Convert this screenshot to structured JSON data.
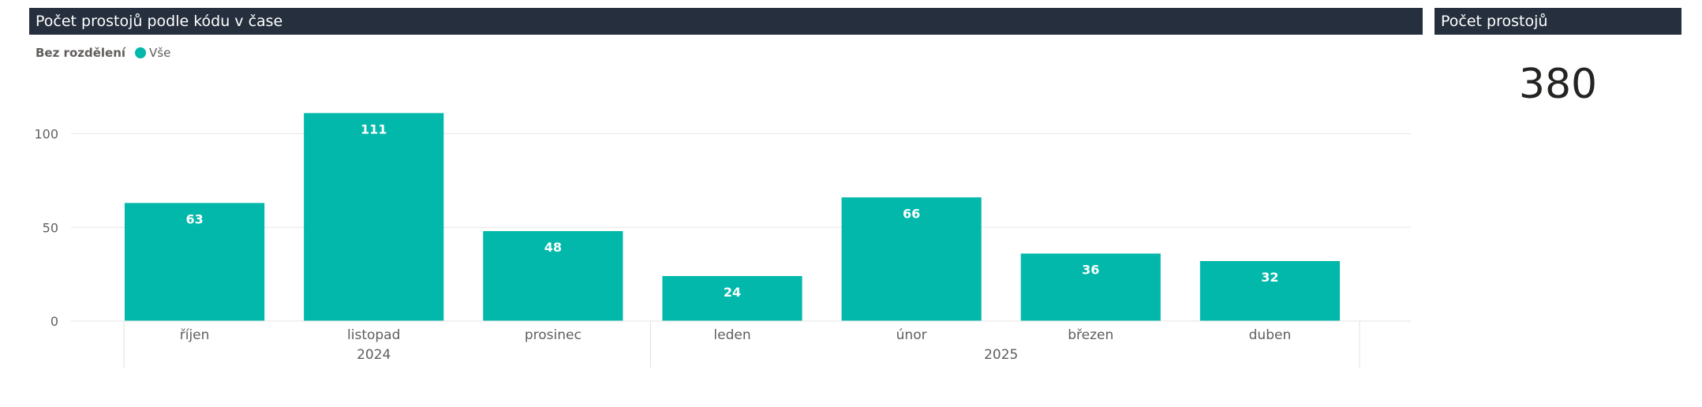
{
  "chart_panel": {
    "title": "Počet prostojů podle kódu v čase"
  },
  "legend": {
    "title": "Bez rozdělení",
    "entry": "Vše",
    "color": "#01b8aa"
  },
  "kpi_panel": {
    "title": "Počet prostojů",
    "value": "380"
  },
  "chart_data": {
    "type": "bar",
    "categories": [
      "říjen",
      "listopad",
      "prosinec",
      "leden",
      "únor",
      "březen",
      "duben"
    ],
    "groups": [
      {
        "label": "2024",
        "categories": [
          "říjen",
          "listopad",
          "prosinec"
        ]
      },
      {
        "label": "2025",
        "categories": [
          "leden",
          "únor",
          "březen",
          "duben"
        ]
      }
    ],
    "series": [
      {
        "name": "Vše",
        "values": [
          63,
          111,
          48,
          24,
          66,
          36,
          32
        ],
        "color": "#01b8aa"
      }
    ],
    "ylim": [
      0,
      120
    ],
    "yticks": [
      0,
      50,
      100
    ],
    "grid": true,
    "data_labels": true,
    "legend_position": "top-left"
  }
}
